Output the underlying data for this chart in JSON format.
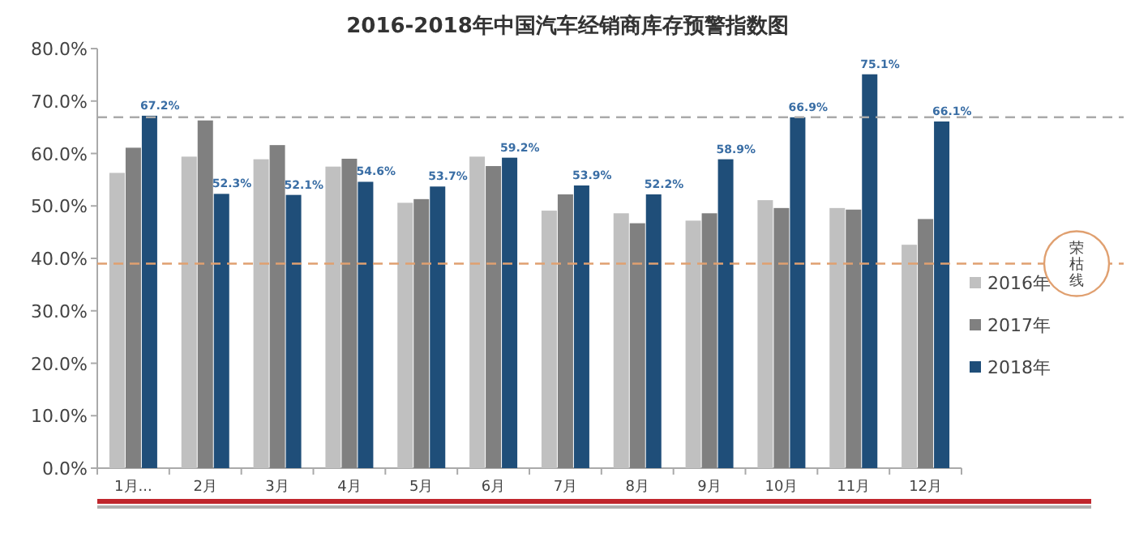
{
  "chart_data": {
    "type": "bar",
    "title": "2016-2018年中国汽车经销商库存预警指数图",
    "categories": [
      "1月...",
      "2月",
      "3月",
      "4月",
      "5月",
      "6月",
      "7月",
      "8月",
      "9月",
      "10月",
      "11月",
      "12月"
    ],
    "series": [
      {
        "name": "2016年",
        "color": "#c0c0c0",
        "values": [
          56.3,
          59.4,
          58.9,
          57.5,
          50.6,
          59.4,
          49.1,
          48.6,
          47.2,
          51.1,
          49.6,
          42.6
        ]
      },
      {
        "name": "2017年",
        "color": "#808080",
        "values": [
          61.1,
          66.3,
          61.6,
          59.0,
          51.3,
          57.6,
          52.2,
          46.7,
          48.6,
          49.6,
          49.3,
          47.5
        ]
      },
      {
        "name": "2018年",
        "color": "#1f4e79",
        "values": [
          67.2,
          52.3,
          52.1,
          54.6,
          53.7,
          59.2,
          53.9,
          52.2,
          58.9,
          66.9,
          75.1,
          66.1
        ],
        "value_labels": [
          "67.2%",
          "52.3%",
          "52.1%",
          "54.6%",
          "53.7%",
          "59.2%",
          "53.9%",
          "52.2%",
          "58.9%",
          "66.9%",
          "75.1%",
          "66.1%"
        ]
      }
    ],
    "ylim": [
      0,
      80
    ],
    "yticks": [
      {
        "value": 0,
        "label": "0.0%"
      },
      {
        "value": 10,
        "label": "10.0%"
      },
      {
        "value": 20,
        "label": "20.0%"
      },
      {
        "value": 30,
        "label": "30.0%"
      },
      {
        "value": 40,
        "label": "40.0%"
      },
      {
        "value": 50,
        "label": "50.0%"
      },
      {
        "value": 60,
        "label": "60.0%"
      },
      {
        "value": 70,
        "label": "70.0%"
      },
      {
        "value": 80,
        "label": "80.0%"
      }
    ],
    "legend": "right",
    "ref_lines": [
      {
        "axis": "y",
        "value": 66.9,
        "label": null,
        "color": "#aaaaaa",
        "line_style": "dashed"
      },
      {
        "axis": "y",
        "value": 39,
        "label": "荣枯线",
        "color": "#e0a070",
        "line_style": "dashed"
      }
    ]
  }
}
